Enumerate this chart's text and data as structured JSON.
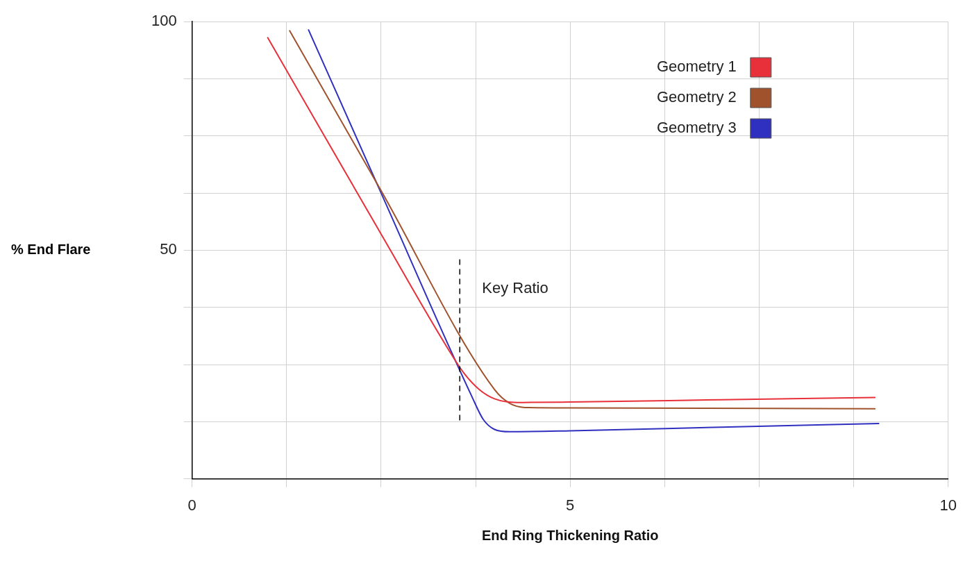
{
  "chart_data": {
    "type": "line",
    "xlabel": "End Ring Thickening Ratio",
    "ylabel": "% End Flare",
    "xlim": [
      0,
      10
    ],
    "ylim": [
      0,
      100
    ],
    "xticks": [
      0,
      {
        "value": 1.25,
        "label": null
      },
      {
        "value": 2.5,
        "label": null
      },
      {
        "value": 3.75,
        "label": null
      },
      5,
      {
        "value": 6.25,
        "label": null
      },
      {
        "value": 7.5,
        "label": null
      },
      {
        "value": 8.75,
        "label": null
      },
      10
    ],
    "yticks": [
      {
        "value": 0,
        "label": null
      },
      {
        "value": 12.5,
        "label": null
      },
      {
        "value": 25,
        "label": null
      },
      {
        "value": 37.5,
        "label": null
      },
      50,
      {
        "value": 62.5,
        "label": null
      },
      {
        "value": 75,
        "label": null
      },
      {
        "value": 87.5,
        "label": null
      },
      100
    ],
    "grid": true,
    "legend": "top right",
    "marker": "none",
    "line_style": "solid",
    "ref_lines": [
      {
        "axis": "x",
        "value": 3.54,
        "label": "Key Ratio",
        "line_style": "dashed",
        "color": "#000000"
      }
    ],
    "series": [
      {
        "name": "Geometry 1",
        "color": "#e8303a",
        "x": [
          1.0,
          2.5,
          3.4,
          3.6,
          3.8,
          4.0,
          4.3,
          5,
          7,
          9.03
        ],
        "values": [
          96.5,
          53.5,
          28,
          23,
          19.5,
          17.5,
          16.7,
          16.8,
          17.3,
          17.8
        ]
      },
      {
        "name": "Geometry 2",
        "color": "#a0522d",
        "x": [
          1.29,
          2.5,
          4.0,
          4.2,
          4.4,
          5,
          9.03
        ],
        "values": [
          98,
          63,
          19.5,
          16.5,
          15.6,
          15.5,
          15.3
        ]
      },
      {
        "name": "Geometry 3",
        "color": "#3030c0",
        "x": [
          1.54,
          2.5,
          3.7,
          3.85,
          4.0,
          4.2,
          5,
          7,
          9.08
        ],
        "values": [
          98.2,
          62.5,
          18,
          13,
          10.8,
          10.3,
          10.5,
          11.3,
          12.1
        ]
      }
    ]
  }
}
